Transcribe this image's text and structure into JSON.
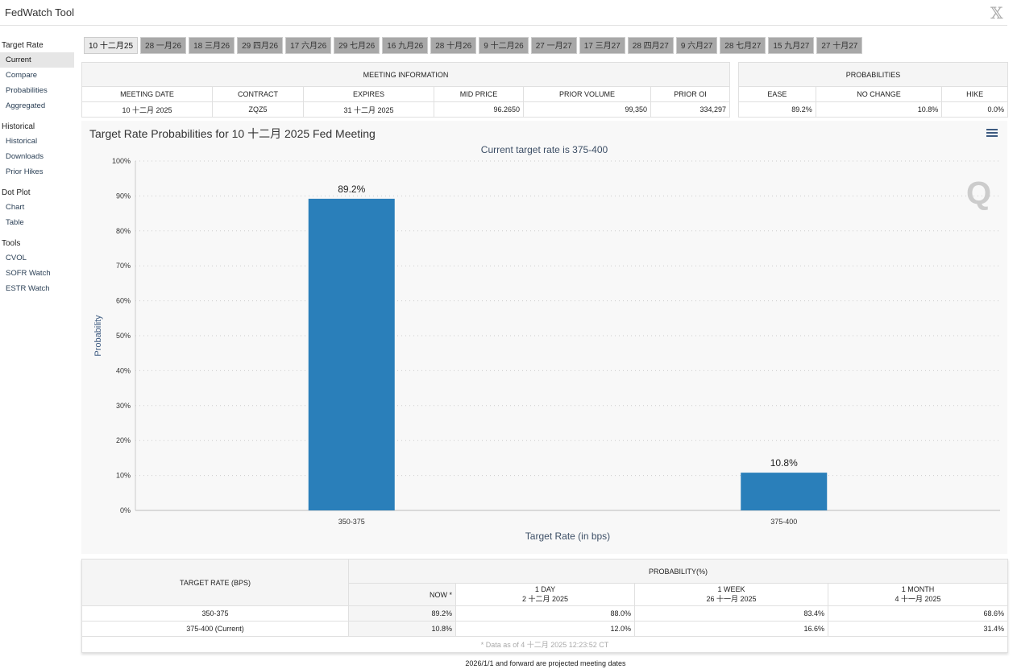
{
  "app": {
    "title": "FedWatch Tool",
    "close": "𝕏"
  },
  "sidebar": [
    {
      "section": "Target Rate",
      "items": [
        "Current",
        "Compare",
        "Probabilities",
        "Aggregated"
      ]
    },
    {
      "section": "Historical",
      "items": [
        "Historical",
        "Downloads",
        "Prior Hikes"
      ]
    },
    {
      "section": "Dot Plot",
      "items": [
        "Chart",
        "Table"
      ]
    },
    {
      "section": "Tools",
      "items": [
        "CVOL",
        "SOFR Watch",
        "ESTR Watch"
      ]
    }
  ],
  "tabs": [
    "10 十二月25",
    "28 一月26",
    "18 三月26",
    "29 四月26",
    "17 六月26",
    "29 七月26",
    "16 九月26",
    "28 十月26",
    "9 十二月26",
    "27 一月27",
    "17 三月27",
    "28 四月27",
    "9 六月27",
    "28 七月27",
    "15 九月27",
    "27 十月27"
  ],
  "meeting": {
    "caption": "MEETING INFORMATION",
    "headers": [
      "MEETING DATE",
      "CONTRACT",
      "EXPIRES",
      "MID PRICE",
      "PRIOR VOLUME",
      "PRIOR OI"
    ],
    "row": [
      "10 十二月 2025",
      "ZQZ5",
      "31 十二月 2025",
      "96.2650",
      "99,350",
      "334,297"
    ]
  },
  "probs": {
    "caption": "PROBABILITIES",
    "headers": [
      "EASE",
      "NO CHANGE",
      "HIKE"
    ],
    "row": [
      "89.2%",
      "10.8%",
      "0.0%"
    ]
  },
  "chart_data": {
    "type": "bar",
    "title": "Target Rate Probabilities for 10 十二月 2025 Fed Meeting",
    "subtitle": "Current target rate is 375-400",
    "xlabel": "Target Rate (in bps)",
    "ylabel": "Probability",
    "categories": [
      "350-375",
      "375-400"
    ],
    "values": [
      89.2,
      10.8
    ],
    "labels": [
      "89.2%",
      "10.8%"
    ],
    "ylim": [
      0,
      100
    ],
    "yticks": [
      "0%",
      "10%",
      "20%",
      "30%",
      "40%",
      "50%",
      "60%",
      "70%",
      "80%",
      "90%",
      "100%"
    ],
    "color": "#2a7fba",
    "grid": true
  },
  "bottom": {
    "rate_header": "TARGET RATE (BPS)",
    "prob_header": "PROBABILITY(%)",
    "cols": [
      {
        "l1": "NOW *",
        "l2": ""
      },
      {
        "l1": "1 DAY",
        "l2": "2 十二月 2025"
      },
      {
        "l1": "1 WEEK",
        "l2": "26 十一月 2025"
      },
      {
        "l1": "1 MONTH",
        "l2": "4 十一月 2025"
      }
    ],
    "rows": [
      [
        "350-375",
        "89.2%",
        "88.0%",
        "83.4%",
        "68.6%"
      ],
      [
        "375-400 (Current)",
        "10.8%",
        "12.0%",
        "16.6%",
        "31.4%"
      ]
    ],
    "note": "* Data as of 4 十二月 2025 12:23:52 CT"
  },
  "footer": "2026/1/1 and forward are projected meeting dates"
}
